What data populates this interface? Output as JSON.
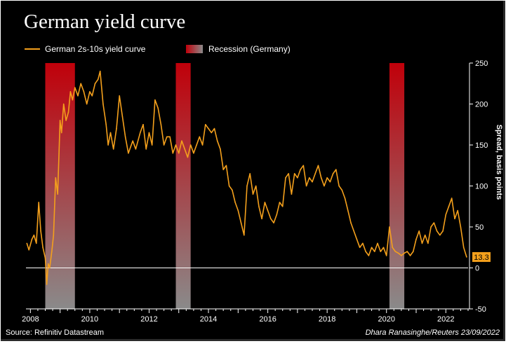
{
  "header": {
    "title": "German yield curve"
  },
  "legend": {
    "series_label": "German 2s-10s yield curve",
    "recession_label": "Recession (Germany)"
  },
  "footer": {
    "source": "Source: Refinitiv Datastream",
    "credit": "Dhara Ranasinghe/Reuters 23/09/2022"
  },
  "colors": {
    "line": "#f4a01c",
    "recession_top": "#c0000a",
    "recession_bottom": "#8a8a8a",
    "background": "#000000"
  },
  "chart_data": {
    "type": "line",
    "title": "German yield curve",
    "xlabel": "",
    "ylabel": "Spread, basis points",
    "xlim": [
      2007.85,
      2022.75
    ],
    "ylim": [
      -50,
      250
    ],
    "x_tick_labels": [
      "2008",
      "2010",
      "2012",
      "2014",
      "2016",
      "2018",
      "2020",
      "2022"
    ],
    "x_ticks": [
      2008,
      2010,
      2012,
      2014,
      2016,
      2018,
      2020,
      2022
    ],
    "y_tick_labels": [
      "250",
      "200",
      "150",
      "100",
      "50",
      "0",
      "-50"
    ],
    "y_ticks": [
      250,
      200,
      150,
      100,
      50,
      0,
      -50
    ],
    "zero_line": 0,
    "last_value_label": "13.3",
    "recessions": [
      {
        "start": 2008.5,
        "end": 2009.5
      },
      {
        "start": 2012.9,
        "end": 2013.4
      },
      {
        "start": 2020.1,
        "end": 2020.6
      }
    ],
    "series": [
      {
        "name": "German 2s-10s yield curve",
        "x": [
          2007.88,
          2007.95,
          2008.05,
          2008.12,
          2008.2,
          2008.28,
          2008.35,
          2008.42,
          2008.5,
          2008.55,
          2008.6,
          2008.65,
          2008.72,
          2008.78,
          2008.85,
          2008.92,
          2009.0,
          2009.05,
          2009.12,
          2009.2,
          2009.28,
          2009.35,
          2009.42,
          2009.5,
          2009.6,
          2009.7,
          2009.8,
          2009.9,
          2010.0,
          2010.08,
          2010.18,
          2010.28,
          2010.35,
          2010.45,
          2010.55,
          2010.62,
          2010.7,
          2010.8,
          2010.9,
          2011.0,
          2011.1,
          2011.2,
          2011.3,
          2011.45,
          2011.55,
          2011.7,
          2011.8,
          2011.9,
          2012.0,
          2012.1,
          2012.2,
          2012.3,
          2012.4,
          2012.5,
          2012.6,
          2012.7,
          2012.8,
          2012.9,
          2013.0,
          2013.1,
          2013.2,
          2013.3,
          2013.4,
          2013.5,
          2013.6,
          2013.7,
          2013.8,
          2013.9,
          2014.0,
          2014.1,
          2014.2,
          2014.3,
          2014.4,
          2014.5,
          2014.6,
          2014.7,
          2014.8,
          2014.9,
          2015.0,
          2015.1,
          2015.2,
          2015.3,
          2015.4,
          2015.5,
          2015.6,
          2015.7,
          2015.8,
          2015.9,
          2016.0,
          2016.1,
          2016.2,
          2016.3,
          2016.4,
          2016.5,
          2016.6,
          2016.7,
          2016.8,
          2016.9,
          2017.0,
          2017.1,
          2017.2,
          2017.3,
          2017.4,
          2017.5,
          2017.6,
          2017.7,
          2017.8,
          2017.9,
          2018.0,
          2018.1,
          2018.2,
          2018.3,
          2018.4,
          2018.5,
          2018.6,
          2018.7,
          2018.8,
          2018.9,
          2019.0,
          2019.1,
          2019.2,
          2019.3,
          2019.4,
          2019.5,
          2019.6,
          2019.7,
          2019.8,
          2019.9,
          2020.0,
          2020.1,
          2020.2,
          2020.3,
          2020.4,
          2020.5,
          2020.6,
          2020.7,
          2020.8,
          2020.9,
          2021.0,
          2021.1,
          2021.2,
          2021.3,
          2021.4,
          2021.5,
          2021.6,
          2021.7,
          2021.8,
          2021.9,
          2022.0,
          2022.1,
          2022.2,
          2022.3,
          2022.4,
          2022.5,
          2022.6,
          2022.7
        ],
        "values": [
          30,
          22,
          35,
          40,
          30,
          80,
          45,
          25,
          12,
          -20,
          5,
          0,
          20,
          40,
          110,
          90,
          180,
          165,
          200,
          180,
          190,
          215,
          205,
          220,
          210,
          225,
          215,
          200,
          215,
          210,
          225,
          230,
          240,
          200,
          175,
          150,
          165,
          145,
          170,
          210,
          185,
          160,
          140,
          155,
          145,
          165,
          175,
          145,
          165,
          150,
          205,
          195,
          175,
          150,
          160,
          160,
          140,
          150,
          140,
          155,
          145,
          135,
          150,
          140,
          150,
          160,
          150,
          175,
          170,
          165,
          170,
          155,
          145,
          120,
          125,
          100,
          95,
          80,
          70,
          55,
          40,
          100,
          115,
          90,
          100,
          75,
          60,
          80,
          70,
          60,
          55,
          65,
          80,
          75,
          110,
          115,
          90,
          115,
          110,
          120,
          125,
          100,
          110,
          105,
          115,
          125,
          110,
          100,
          110,
          105,
          115,
          120,
          100,
          95,
          85,
          70,
          55,
          45,
          35,
          25,
          30,
          20,
          15,
          25,
          20,
          30,
          20,
          25,
          15,
          50,
          25,
          20,
          18,
          15,
          18,
          20,
          15,
          20,
          35,
          45,
          30,
          40,
          30,
          50,
          55,
          45,
          40,
          45,
          65,
          75,
          85,
          60,
          70,
          50,
          25,
          13.3
        ]
      }
    ]
  }
}
